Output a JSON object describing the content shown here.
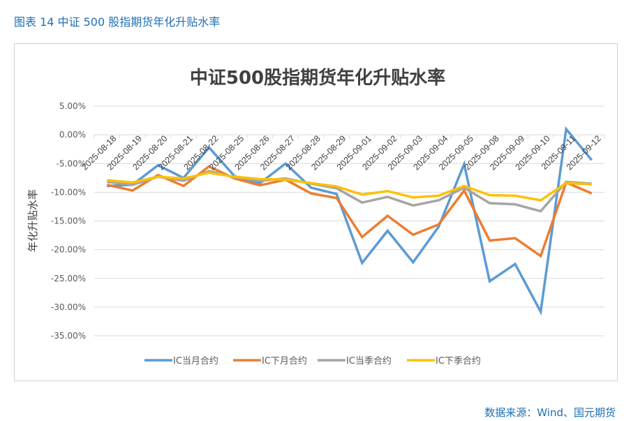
{
  "figure_title": "图表 14  中证 500 股指期货年化升贴水率",
  "source": "数据来源：Wind、国元期货",
  "chart_data": {
    "type": "line",
    "title": "中证500股指期货年化升贴水率",
    "xlabel": "",
    "ylabel": "年化升贴水率",
    "ylim": [
      -35,
      5
    ],
    "yticks": [
      5,
      0,
      -5,
      -10,
      -15,
      -20,
      -25,
      -30,
      -35
    ],
    "ytick_labels": [
      "5.00%",
      "0.00%",
      "-5.00%",
      "-10.00%",
      "-15.00%",
      "-20.00%",
      "-25.00%",
      "-30.00%",
      "-35.00%"
    ],
    "grid": true,
    "legend_position": "bottom",
    "categories": [
      "2025-08-18",
      "2025-08-19",
      "2025-08-20",
      "2025-08-21",
      "2025-08-22",
      "2025-08-25",
      "2025-08-26",
      "2025-08-27",
      "2025-08-28",
      "2025-08-29",
      "2025-09-01",
      "2025-09-02",
      "2025-09-03",
      "2025-09-04",
      "2025-09-05",
      "2025-09-08",
      "2025-09-09",
      "2025-09-10",
      "2025-09-11",
      "2025-09-12"
    ],
    "series": [
      {
        "name": "IC当月合约",
        "color": "#5b9bd5",
        "values": [
          -8.9,
          -8.7,
          -5.3,
          -7.5,
          -2.2,
          -7.2,
          -8.4,
          -5.0,
          -9.2,
          -10.3,
          -22.3,
          -16.7,
          -22.2,
          -16.0,
          -5.1,
          -25.5,
          -22.5,
          -30.8,
          1.0,
          -4.4
        ]
      },
      {
        "name": "IC下月合约",
        "color": "#ed7d31",
        "values": [
          -8.7,
          -9.7,
          -7.0,
          -8.9,
          -5.5,
          -7.6,
          -8.8,
          -7.8,
          -10.2,
          -11.0,
          -17.8,
          -14.1,
          -17.4,
          -15.6,
          -9.7,
          -18.4,
          -18.0,
          -21.1,
          -8.3,
          -10.2
        ]
      },
      {
        "name": "IC当季合约",
        "color": "#a5a5a5",
        "values": [
          -8.2,
          -8.7,
          -7.3,
          -8.0,
          -6.3,
          -7.4,
          -8.0,
          -7.6,
          -8.5,
          -9.3,
          -11.8,
          -10.8,
          -12.3,
          -11.4,
          -9.2,
          -11.9,
          -12.1,
          -13.3,
          -8.2,
          -8.5
        ]
      },
      {
        "name": "IC下季合约",
        "color": "#ffc000",
        "values": [
          -7.9,
          -8.3,
          -7.3,
          -7.6,
          -6.6,
          -7.3,
          -7.7,
          -7.8,
          -8.4,
          -9.0,
          -10.4,
          -9.8,
          -10.9,
          -10.6,
          -8.9,
          -10.5,
          -10.6,
          -11.4,
          -8.4,
          -8.6
        ]
      }
    ]
  }
}
